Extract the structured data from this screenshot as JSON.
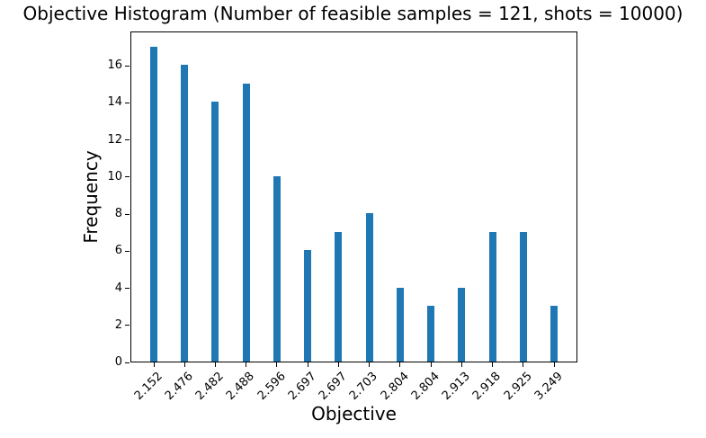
{
  "chart_data": {
    "type": "bar",
    "title": "Objective Histogram (Number of feasible samples = 121, shots = 10000)",
    "xlabel": "Objective",
    "ylabel": "Frequency",
    "categories": [
      "2.152",
      "2.476",
      "2.482",
      "2.488",
      "2.596",
      "2.697",
      "2.697",
      "2.703",
      "2.804",
      "2.804",
      "2.913",
      "2.918",
      "2.925",
      "3.249"
    ],
    "values": [
      17,
      16,
      14,
      15,
      10,
      6,
      7,
      8,
      4,
      3,
      4,
      7,
      7,
      3
    ],
    "yticks": [
      0,
      2,
      4,
      6,
      8,
      10,
      12,
      14,
      16
    ],
    "ylim": [
      0,
      17.85
    ],
    "x_tick_rotation": 45,
    "grid": false,
    "legend": "none",
    "bar_color": "#1f77b4",
    "axis_color": "#000000",
    "background_color": "#ffffff"
  }
}
